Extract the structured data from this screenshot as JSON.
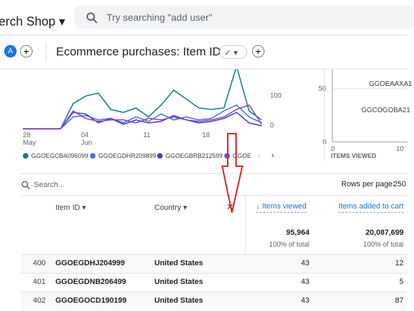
{
  "header": {
    "property": "erch Shop",
    "search_placeholder": "Try searching \"add user\""
  },
  "tabbar": {
    "avatar": "A",
    "title": "Ecommerce purchases: Item ID"
  },
  "chart_data": {
    "type": "line",
    "xlabels": [
      "28\nMay",
      "04\nJun",
      "11",
      "18"
    ],
    "yticks": [
      0,
      100
    ],
    "ylim": [
      0,
      200
    ],
    "series": [
      {
        "name": "GGOEGCBA096099",
        "color": "#127b8f",
        "values": [
          0,
          0,
          0,
          0,
          85,
          110,
          120,
          65,
          55,
          70,
          40,
          80,
          130,
          100,
          70,
          65,
          70,
          210,
          60,
          30
        ]
      },
      {
        "name": "GGOEGDHR209899",
        "color": "#3a7ae0",
        "values": [
          0,
          0,
          0,
          0,
          40,
          45,
          30,
          35,
          20,
          40,
          25,
          50,
          30,
          40,
          30,
          35,
          60,
          80,
          40,
          20
        ]
      },
      {
        "name": "GGOEGBRB212599",
        "color": "#4b3fb3",
        "values": [
          0,
          0,
          0,
          0,
          55,
          50,
          20,
          35,
          15,
          30,
          20,
          25,
          45,
          30,
          20,
          25,
          35,
          55,
          20,
          10
        ]
      },
      {
        "name": "GGOE",
        "color": "#8d3fd6",
        "values": [
          0,
          0,
          0,
          0,
          60,
          35,
          25,
          30,
          30,
          20,
          35,
          30,
          40,
          30,
          25,
          30,
          40,
          65,
          80,
          15
        ]
      }
    ]
  },
  "scatter": {
    "yticks": [
      "50",
      "0"
    ],
    "xticks": [
      "0",
      "10"
    ],
    "labels": [
      "GGOEAAXA1",
      "GGCOGOBA21"
    ],
    "xlabel": "ITEMS VIEWED"
  },
  "table": {
    "search": "Search...",
    "rows_per_page_label": "Rows per page:",
    "rows_per_page": "250",
    "headers": [
      "Item ID",
      "Country",
      "Items viewed",
      "Items added to cart"
    ],
    "totals": [
      "95,964",
      "20,087,699"
    ],
    "totals_sub": [
      "100% of total",
      "100% of total"
    ],
    "rows": [
      [
        "400",
        "GGOEGDHJ204999",
        "United States",
        "43",
        "12"
      ],
      [
        "401",
        "GGOEGDNB206499",
        "United States",
        "43",
        "5"
      ],
      [
        "402",
        "GGOEGOCD190199",
        "United States",
        "43",
        "87"
      ]
    ]
  }
}
